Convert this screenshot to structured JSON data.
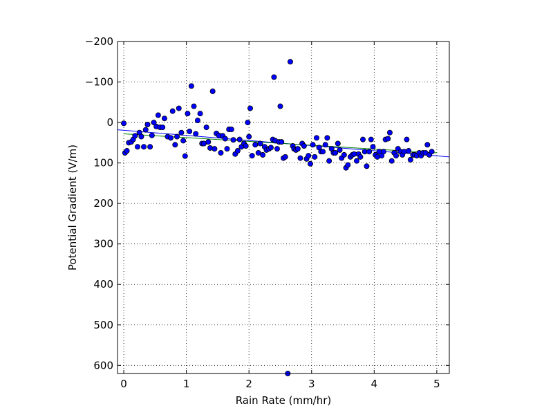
{
  "chart_data": {
    "type": "scatter",
    "xlabel": "Rain Rate (mm/hr)",
    "ylabel": "Potential Gradient (V/m)",
    "xlim": [
      -0.1,
      5.2
    ],
    "ylim": [
      620,
      -200
    ],
    "y_inverted": true,
    "grid": true,
    "legend": "none",
    "xticks": [
      0,
      1,
      2,
      3,
      4,
      5
    ],
    "xtick_labels": [
      "0",
      "1",
      "2",
      "3",
      "4",
      "5"
    ],
    "yticks": [
      -200,
      -100,
      0,
      100,
      200,
      300,
      400,
      500,
      600
    ],
    "ytick_labels": [
      "−200",
      "−100",
      "0",
      "100",
      "200",
      "300",
      "400",
      "500",
      "600"
    ],
    "colors": {
      "points": "#0000ff",
      "blue_line": "#0000ff",
      "green_line": "#008000"
    },
    "fit_lines": [
      {
        "color": "#0000ff",
        "x": [
          -0.1,
          5.2
        ],
        "y": [
          18,
          85
        ]
      },
      {
        "color": "#008000",
        "x": [
          0.0,
          5.0
        ],
        "y": [
          28,
          75
        ]
      }
    ],
    "points": [
      [
        0.0,
        2
      ],
      [
        0.02,
        75
      ],
      [
        0.05,
        70
      ],
      [
        0.08,
        50
      ],
      [
        0.12,
        48
      ],
      [
        0.15,
        42
      ],
      [
        0.18,
        33
      ],
      [
        0.22,
        60
      ],
      [
        0.25,
        25
      ],
      [
        0.28,
        35
      ],
      [
        0.32,
        60
      ],
      [
        0.35,
        18
      ],
      [
        0.38,
        5
      ],
      [
        0.42,
        60
      ],
      [
        0.45,
        32
      ],
      [
        0.48,
        0
      ],
      [
        0.52,
        10
      ],
      [
        0.55,
        -18
      ],
      [
        0.58,
        12
      ],
      [
        0.62,
        12
      ],
      [
        0.65,
        -10
      ],
      [
        0.7,
        35
      ],
      [
        0.75,
        38
      ],
      [
        0.78,
        -28
      ],
      [
        0.82,
        55
      ],
      [
        0.85,
        35
      ],
      [
        0.88,
        -35
      ],
      [
        0.92,
        25
      ],
      [
        0.95,
        45
      ],
      [
        0.98,
        83
      ],
      [
        1.02,
        -22
      ],
      [
        1.05,
        22
      ],
      [
        1.08,
        -90
      ],
      [
        1.12,
        -40
      ],
      [
        1.15,
        28
      ],
      [
        1.18,
        -5
      ],
      [
        1.22,
        -22
      ],
      [
        1.25,
        52
      ],
      [
        1.28,
        52
      ],
      [
        1.32,
        12
      ],
      [
        1.35,
        48
      ],
      [
        1.38,
        63
      ],
      [
        1.42,
        -77
      ],
      [
        1.45,
        65
      ],
      [
        1.48,
        27
      ],
      [
        1.52,
        32
      ],
      [
        1.55,
        75
      ],
      [
        1.58,
        33
      ],
      [
        1.62,
        40
      ],
      [
        1.65,
        65
      ],
      [
        1.68,
        17
      ],
      [
        1.72,
        17
      ],
      [
        1.75,
        43
      ],
      [
        1.78,
        78
      ],
      [
        1.82,
        70
      ],
      [
        1.85,
        42
      ],
      [
        1.88,
        60
      ],
      [
        1.92,
        52
      ],
      [
        1.95,
        58
      ],
      [
        1.98,
        0
      ],
      [
        2.0,
        35
      ],
      [
        2.02,
        -35
      ],
      [
        2.05,
        82
      ],
      [
        2.1,
        55
      ],
      [
        2.15,
        75
      ],
      [
        2.18,
        52
      ],
      [
        2.22,
        80
      ],
      [
        2.25,
        60
      ],
      [
        2.28,
        68
      ],
      [
        2.32,
        65
      ],
      [
        2.35,
        62
      ],
      [
        2.38,
        42
      ],
      [
        2.4,
        -112
      ],
      [
        2.42,
        45
      ],
      [
        2.45,
        65
      ],
      [
        2.48,
        48
      ],
      [
        2.5,
        -40
      ],
      [
        2.52,
        48
      ],
      [
        2.55,
        88
      ],
      [
        2.58,
        85
      ],
      [
        2.62,
        620
      ],
      [
        2.66,
        -150
      ],
      [
        2.7,
        58
      ],
      [
        2.72,
        65
      ],
      [
        2.75,
        68
      ],
      [
        2.78,
        65
      ],
      [
        2.82,
        88
      ],
      [
        2.85,
        52
      ],
      [
        2.88,
        58
      ],
      [
        2.92,
        90
      ],
      [
        2.95,
        82
      ],
      [
        2.98,
        102
      ],
      [
        3.02,
        55
      ],
      [
        3.05,
        85
      ],
      [
        3.08,
        38
      ],
      [
        3.12,
        62
      ],
      [
        3.15,
        72
      ],
      [
        3.18,
        72
      ],
      [
        3.22,
        55
      ],
      [
        3.25,
        38
      ],
      [
        3.28,
        95
      ],
      [
        3.32,
        65
      ],
      [
        3.35,
        75
      ],
      [
        3.38,
        75
      ],
      [
        3.42,
        52
      ],
      [
        3.45,
        68
      ],
      [
        3.48,
        88
      ],
      [
        3.52,
        80
      ],
      [
        3.55,
        112
      ],
      [
        3.58,
        105
      ],
      [
        3.62,
        85
      ],
      [
        3.65,
        80
      ],
      [
        3.68,
        78
      ],
      [
        3.72,
        95
      ],
      [
        3.75,
        78
      ],
      [
        3.78,
        85
      ],
      [
        3.82,
        42
      ],
      [
        3.85,
        72
      ],
      [
        3.88,
        108
      ],
      [
        3.92,
        72
      ],
      [
        3.95,
        42
      ],
      [
        3.98,
        60
      ],
      [
        4.02,
        80
      ],
      [
        4.05,
        85
      ],
      [
        4.08,
        72
      ],
      [
        4.12,
        82
      ],
      [
        4.15,
        72
      ],
      [
        4.18,
        42
      ],
      [
        4.22,
        40
      ],
      [
        4.25,
        25
      ],
      [
        4.28,
        95
      ],
      [
        4.32,
        75
      ],
      [
        4.35,
        82
      ],
      [
        4.38,
        65
      ],
      [
        4.42,
        72
      ],
      [
        4.45,
        80
      ],
      [
        4.48,
        72
      ],
      [
        4.52,
        42
      ],
      [
        4.55,
        70
      ],
      [
        4.58,
        92
      ],
      [
        4.62,
        80
      ],
      [
        4.65,
        80
      ],
      [
        4.68,
        82
      ],
      [
        4.72,
        75
      ],
      [
        4.75,
        82
      ],
      [
        4.78,
        75
      ],
      [
        4.82,
        75
      ],
      [
        4.85,
        55
      ],
      [
        4.88,
        80
      ],
      [
        4.92,
        72
      ]
    ]
  }
}
